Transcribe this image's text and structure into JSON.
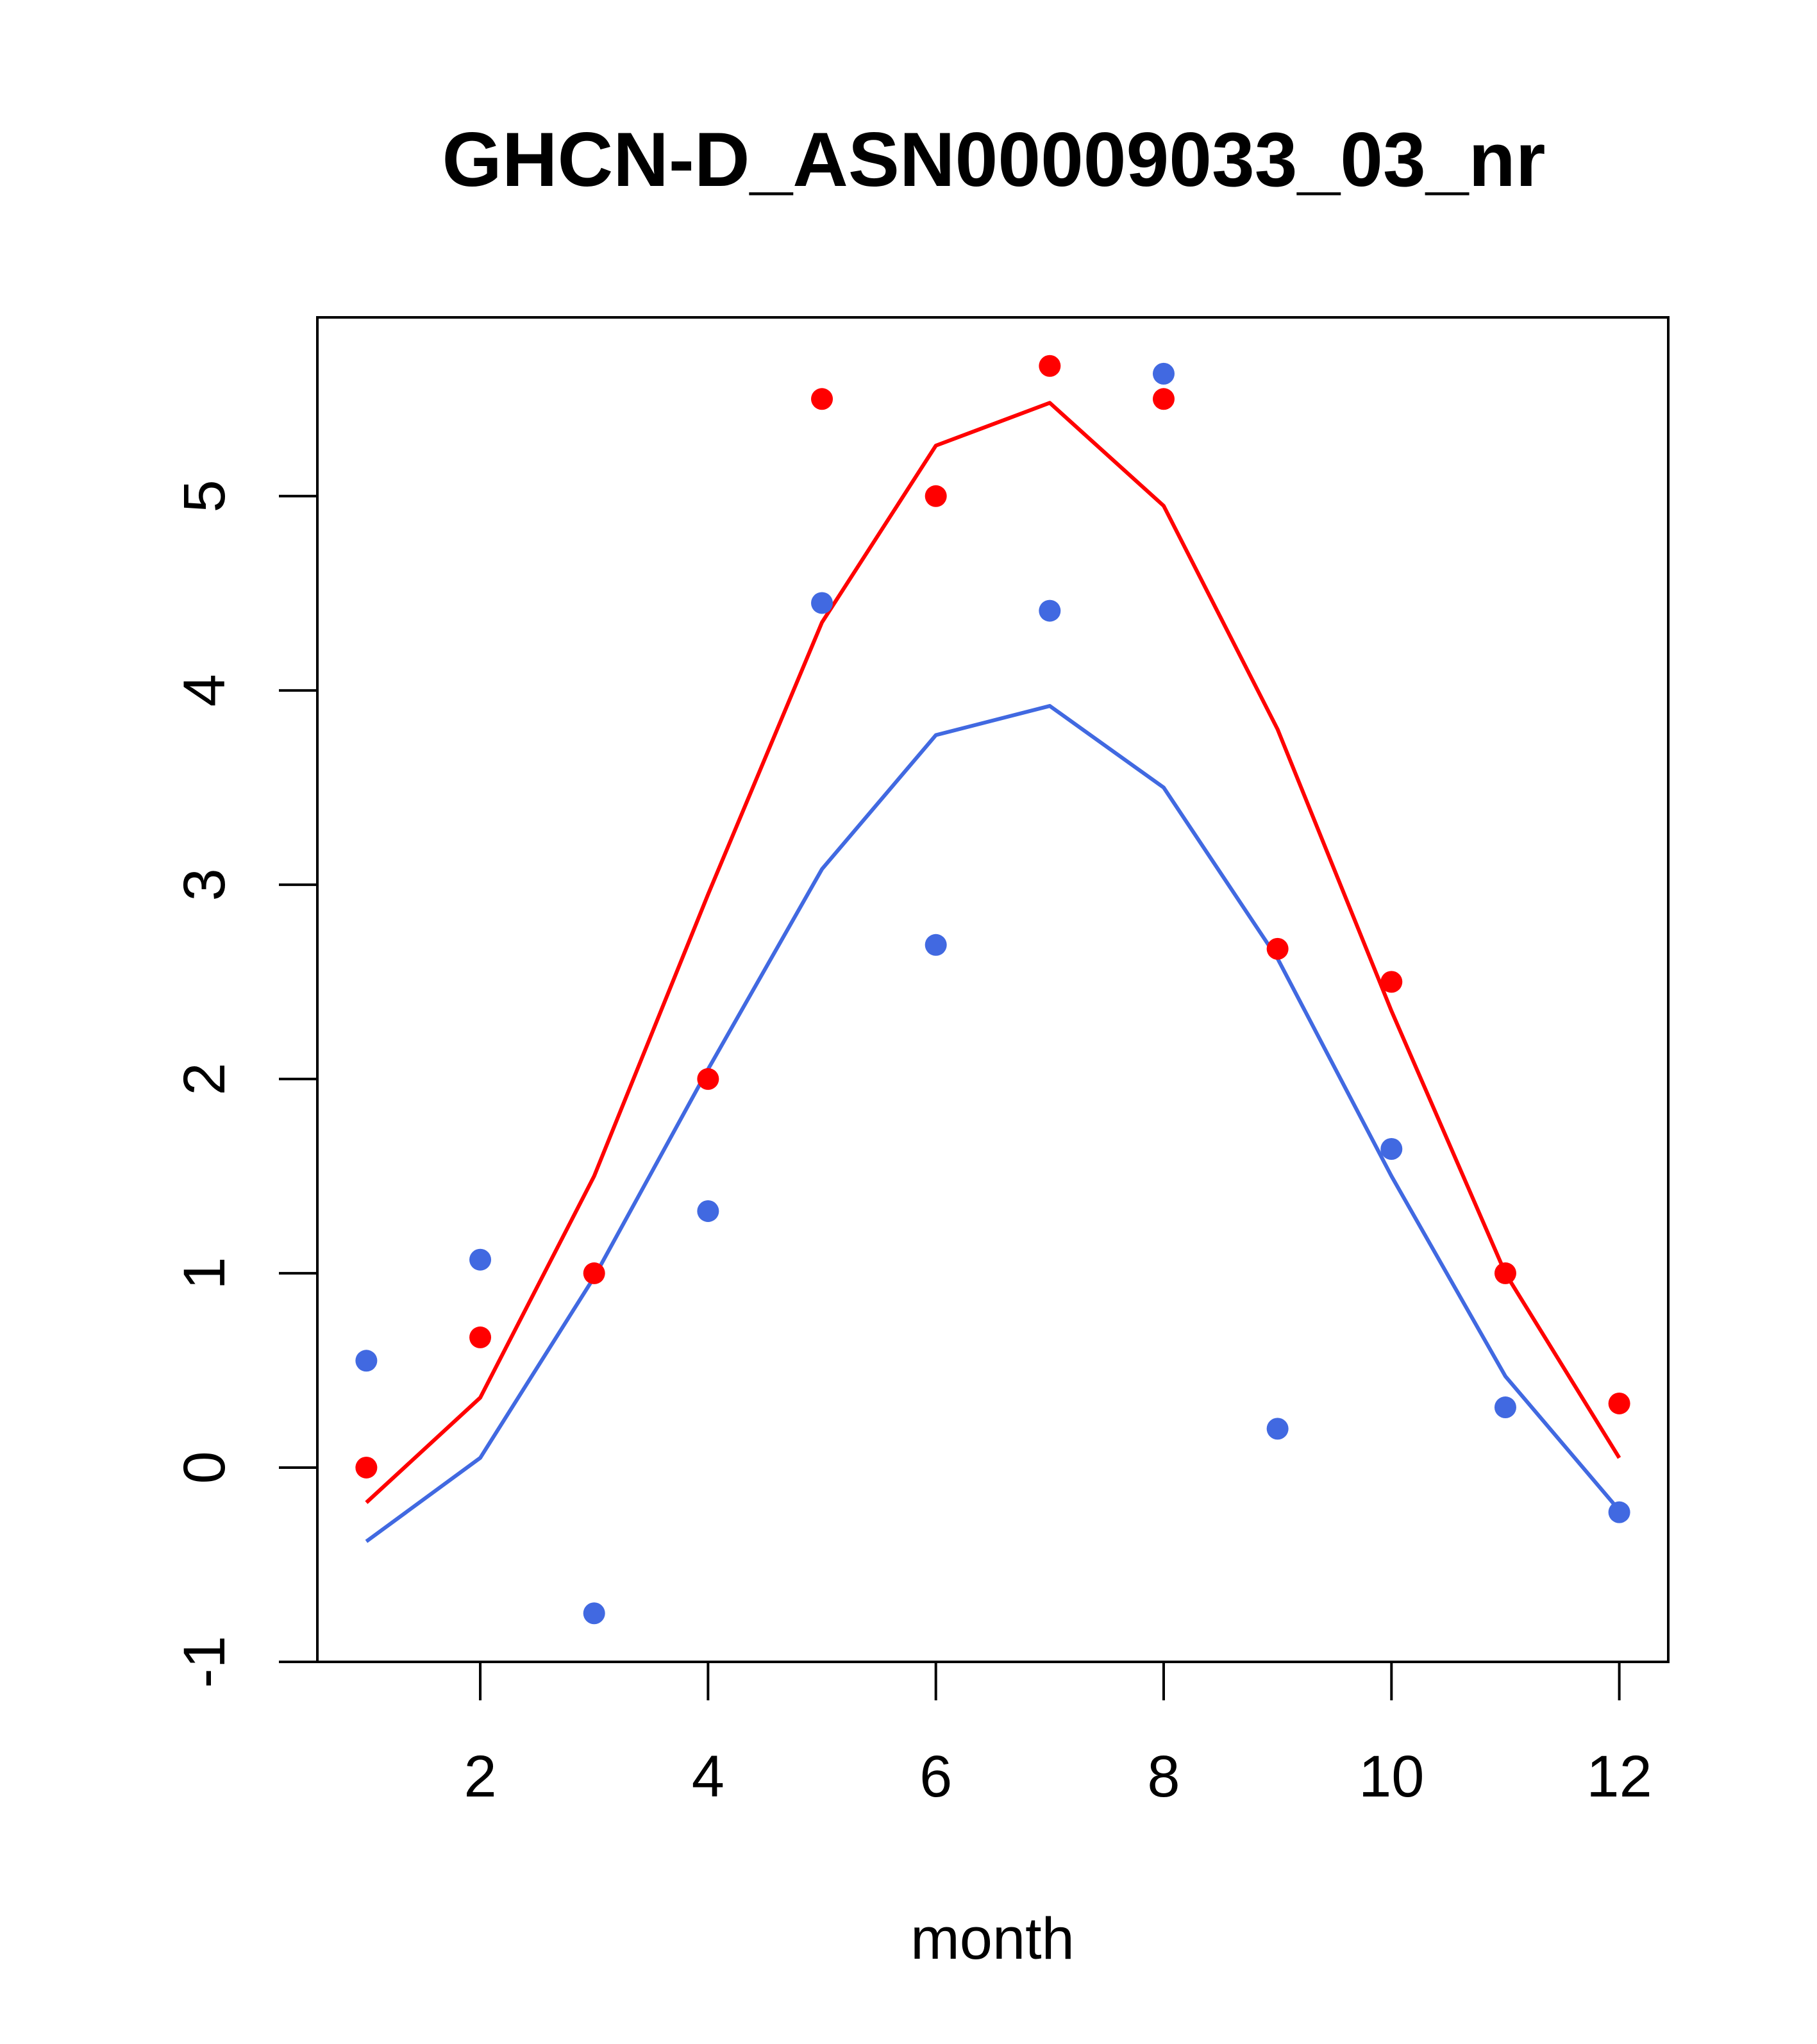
{
  "chart_data": {
    "type": "line",
    "title": "GHCN-D_ASN00009033_03_nr",
    "xlabel": "month",
    "ylabel": "",
    "xlim": [
      0.57,
      12.43
    ],
    "ylim": [
      -1,
      5.92
    ],
    "x_ticks": [
      2,
      4,
      6,
      8,
      10,
      12
    ],
    "y_ticks": [
      -1,
      0,
      1,
      2,
      3,
      4,
      5
    ],
    "x_tick_labels": [
      "2",
      "4",
      "6",
      "8",
      "10",
      "12"
    ],
    "y_tick_labels": [
      "-1",
      "0",
      "1",
      "2",
      "3",
      "4",
      "5"
    ],
    "grid": false,
    "legend": "none",
    "series": [
      {
        "color": "#ff0000",
        "kind": "points",
        "x": [
          1,
          2,
          3,
          4,
          5,
          6,
          7,
          8,
          9,
          10,
          11,
          12
        ],
        "y": [
          0,
          0.67,
          1.0,
          2.0,
          5.5,
          5.0,
          5.67,
          5.5,
          2.67,
          2.5,
          1.0,
          0.33
        ]
      },
      {
        "color": "#ff0000",
        "kind": "line",
        "x": [
          1,
          2,
          3,
          4,
          5,
          6,
          7,
          8,
          9,
          10,
          11,
          12
        ],
        "y": [
          -0.18,
          0.36,
          1.5,
          2.95,
          4.35,
          5.26,
          5.48,
          4.95,
          3.8,
          2.35,
          1.0,
          0.05
        ]
      },
      {
        "color": "#4169e1",
        "kind": "points",
        "x": [
          1,
          2,
          3,
          4,
          5,
          6,
          7,
          8,
          9,
          10,
          11,
          12
        ],
        "y": [
          0.55,
          1.07,
          -0.75,
          1.32,
          4.45,
          2.69,
          4.41,
          5.63,
          0.2,
          1.64,
          0.31,
          -0.23
        ]
      },
      {
        "color": "#4169e1",
        "kind": "line",
        "x": [
          1,
          2,
          3,
          4,
          5,
          6,
          7,
          8,
          9,
          10,
          11,
          12
        ],
        "y": [
          -0.38,
          0.05,
          0.98,
          2.05,
          3.08,
          3.77,
          3.92,
          3.5,
          2.62,
          1.5,
          0.47,
          -0.22
        ]
      }
    ]
  }
}
